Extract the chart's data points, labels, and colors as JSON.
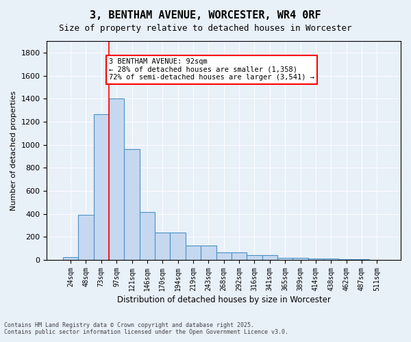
{
  "title": "3, BENTHAM AVENUE, WORCESTER, WR4 0RF",
  "subtitle": "Size of property relative to detached houses in Worcester",
  "xlabel": "Distribution of detached houses by size in Worcester",
  "ylabel": "Number of detached properties",
  "bar_color": "#c5d8f0",
  "bar_edge_color": "#4a90c4",
  "background_color": "#e8f0f8",
  "categories": [
    "24sqm",
    "48sqm",
    "73sqm",
    "97sqm",
    "121sqm",
    "146sqm",
    "170sqm",
    "194sqm",
    "219sqm",
    "243sqm",
    "268sqm",
    "292sqm",
    "316sqm",
    "341sqm",
    "365sqm",
    "389sqm",
    "414sqm",
    "438sqm",
    "462sqm",
    "487sqm",
    "511sqm"
  ],
  "values": [
    25,
    395,
    1265,
    1400,
    960,
    415,
    235,
    235,
    125,
    125,
    65,
    65,
    42,
    42,
    20,
    20,
    15,
    15,
    5,
    5,
    0
  ],
  "ylim": [
    0,
    1900
  ],
  "yticks": [
    0,
    200,
    400,
    600,
    800,
    1000,
    1200,
    1400,
    1600,
    1800
  ],
  "vline_x": 3,
  "annotation_text": "3 BENTHAM AVENUE: 92sqm\n← 28% of detached houses are smaller (1,358)\n72% of semi-detached houses are larger (3,541) →",
  "annotation_box_color": "white",
  "annotation_box_edge": "red",
  "footer_line1": "Contains HM Land Registry data © Crown copyright and database right 2025.",
  "footer_line2": "Contains public sector information licensed under the Open Government Licence v3.0."
}
